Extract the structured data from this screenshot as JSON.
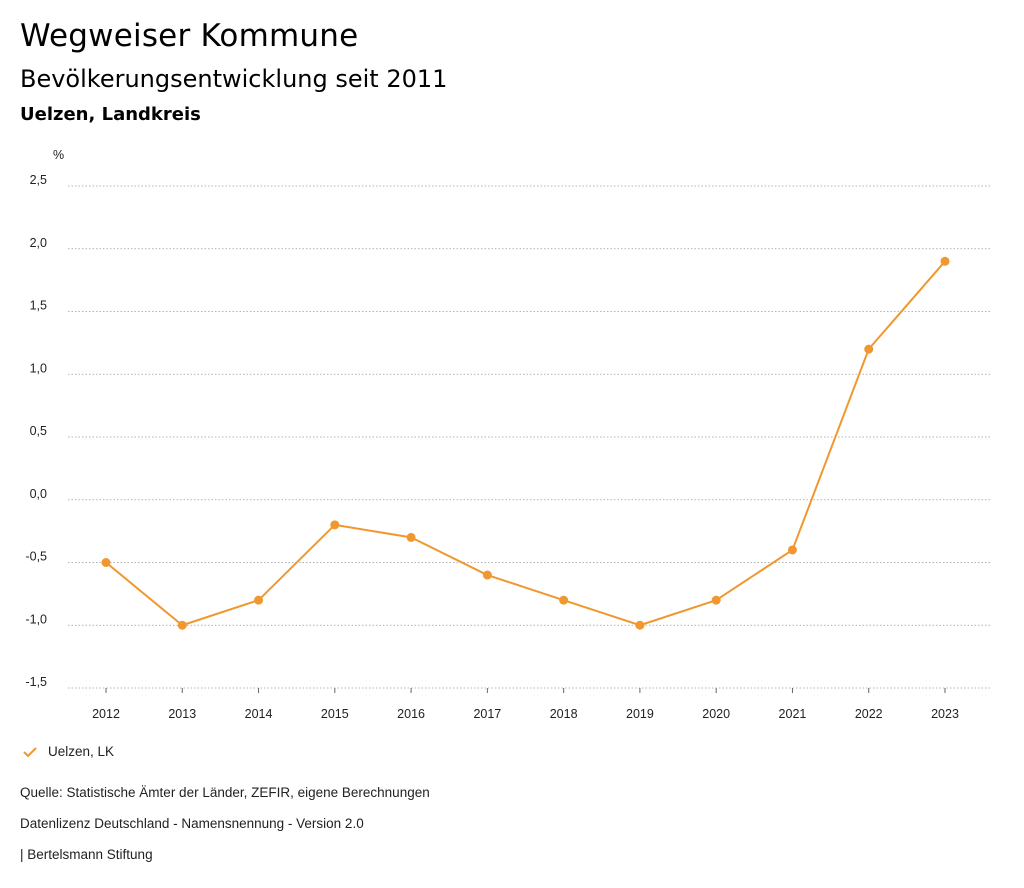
{
  "header": {
    "title": "Wegweiser Kommune",
    "subtitle": "Bevölkerungsentwicklung seit 2011",
    "region": "Uelzen, Landkreis"
  },
  "chart_data": {
    "type": "line",
    "unit": "%",
    "x": [
      "2012",
      "2013",
      "2014",
      "2015",
      "2016",
      "2017",
      "2018",
      "2019",
      "2020",
      "2021",
      "2022",
      "2023"
    ],
    "series": [
      {
        "name": "Uelzen, LK",
        "color": "#f0982f",
        "values": [
          -0.5,
          -1.0,
          -0.8,
          -0.2,
          -0.3,
          -0.6,
          -0.8,
          -1.0,
          -0.8,
          -0.4,
          1.2,
          1.9
        ]
      }
    ],
    "yticks": [
      "2,5",
      "2,0",
      "1,5",
      "1,0",
      "0,5",
      "0,0",
      "-0,5",
      "-1,0",
      "-1,5"
    ],
    "ylim": [
      -1.5,
      2.5
    ],
    "grid": true,
    "legend_position": "bottom-left"
  },
  "footer": {
    "source": "Quelle: Statistische Ämter der Länder, ZEFIR, eigene Berechnungen",
    "license": "Datenlizenz Deutschland - Namensnennung - Version 2.0",
    "publisher": "| Bertelsmann Stiftung"
  }
}
